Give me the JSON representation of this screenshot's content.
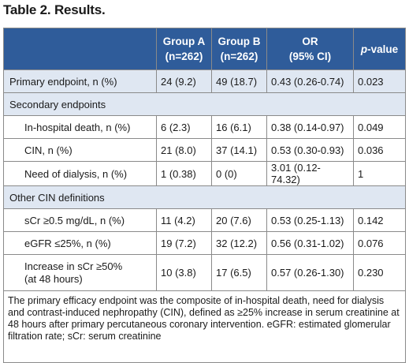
{
  "title": "Table 2. Results.",
  "table": {
    "headers": [
      {
        "line1": "",
        "line2": ""
      },
      {
        "line1": "Group A",
        "line2": "(n=262)"
      },
      {
        "line1": "Group B",
        "line2": "(n=262)"
      },
      {
        "line1": "OR",
        "line2": "(95% CI)"
      },
      {
        "line1_italic": "p",
        "line1_rest": "-value"
      }
    ],
    "rows": [
      {
        "label": "Primary endpoint, n (%)",
        "a": "24 (9.2)",
        "b": "49 (18.7)",
        "or": "0.43 (0.26-0.74)",
        "p": "0.023"
      },
      {
        "section": "Secondary endpoints"
      },
      {
        "label": "In-hospital death, n (%)",
        "a": "6 (2.3)",
        "b": "16 (6.1)",
        "or": "0.38 (0.14-0.97)",
        "p": "0.049"
      },
      {
        "label": "CIN, n (%)",
        "a": "21 (8.0)",
        "b": "37 (14.1)",
        "or": "0.53 (0.30-0.93)",
        "p": "0.036"
      },
      {
        "label": "Need of dialysis, n (%)",
        "a": "1 (0.38)",
        "b": "0 (0)",
        "or": "3.01 (0.12-74.32)",
        "p": "1"
      },
      {
        "section": "Other CIN definitions"
      },
      {
        "label": "sCr ≥0.5 mg/dL, n (%)",
        "a": "11 (4.2)",
        "b": "20 (7.6)",
        "or": "0.53 (0.25-1.13)",
        "p": "0.142"
      },
      {
        "label": "eGFR ≤25%, n (%)",
        "a": "19 (7.2)",
        "b": "32 (12.2)",
        "or": "0.56 (0.31-1.02)",
        "p": "0.076"
      },
      {
        "label_line1": "Increase in sCr ≥50%",
        "label_line2": "(at 48 hours)",
        "a": "10 (3.8)",
        "b": "17 (6.5)",
        "or": "0.57 (0.26-1.30)",
        "p": "0.230"
      }
    ],
    "footnote": "The primary efficacy endpoint was the composite of in-hospital death, need for dialysis and contrast-induced nephropathy (CIN), defined as ≥25% increase in serum creatinine at 48 hours after primary percutaneous coronary intervention. eGFR: estimated glomerular filtration rate; sCr: serum creatinine"
  }
}
